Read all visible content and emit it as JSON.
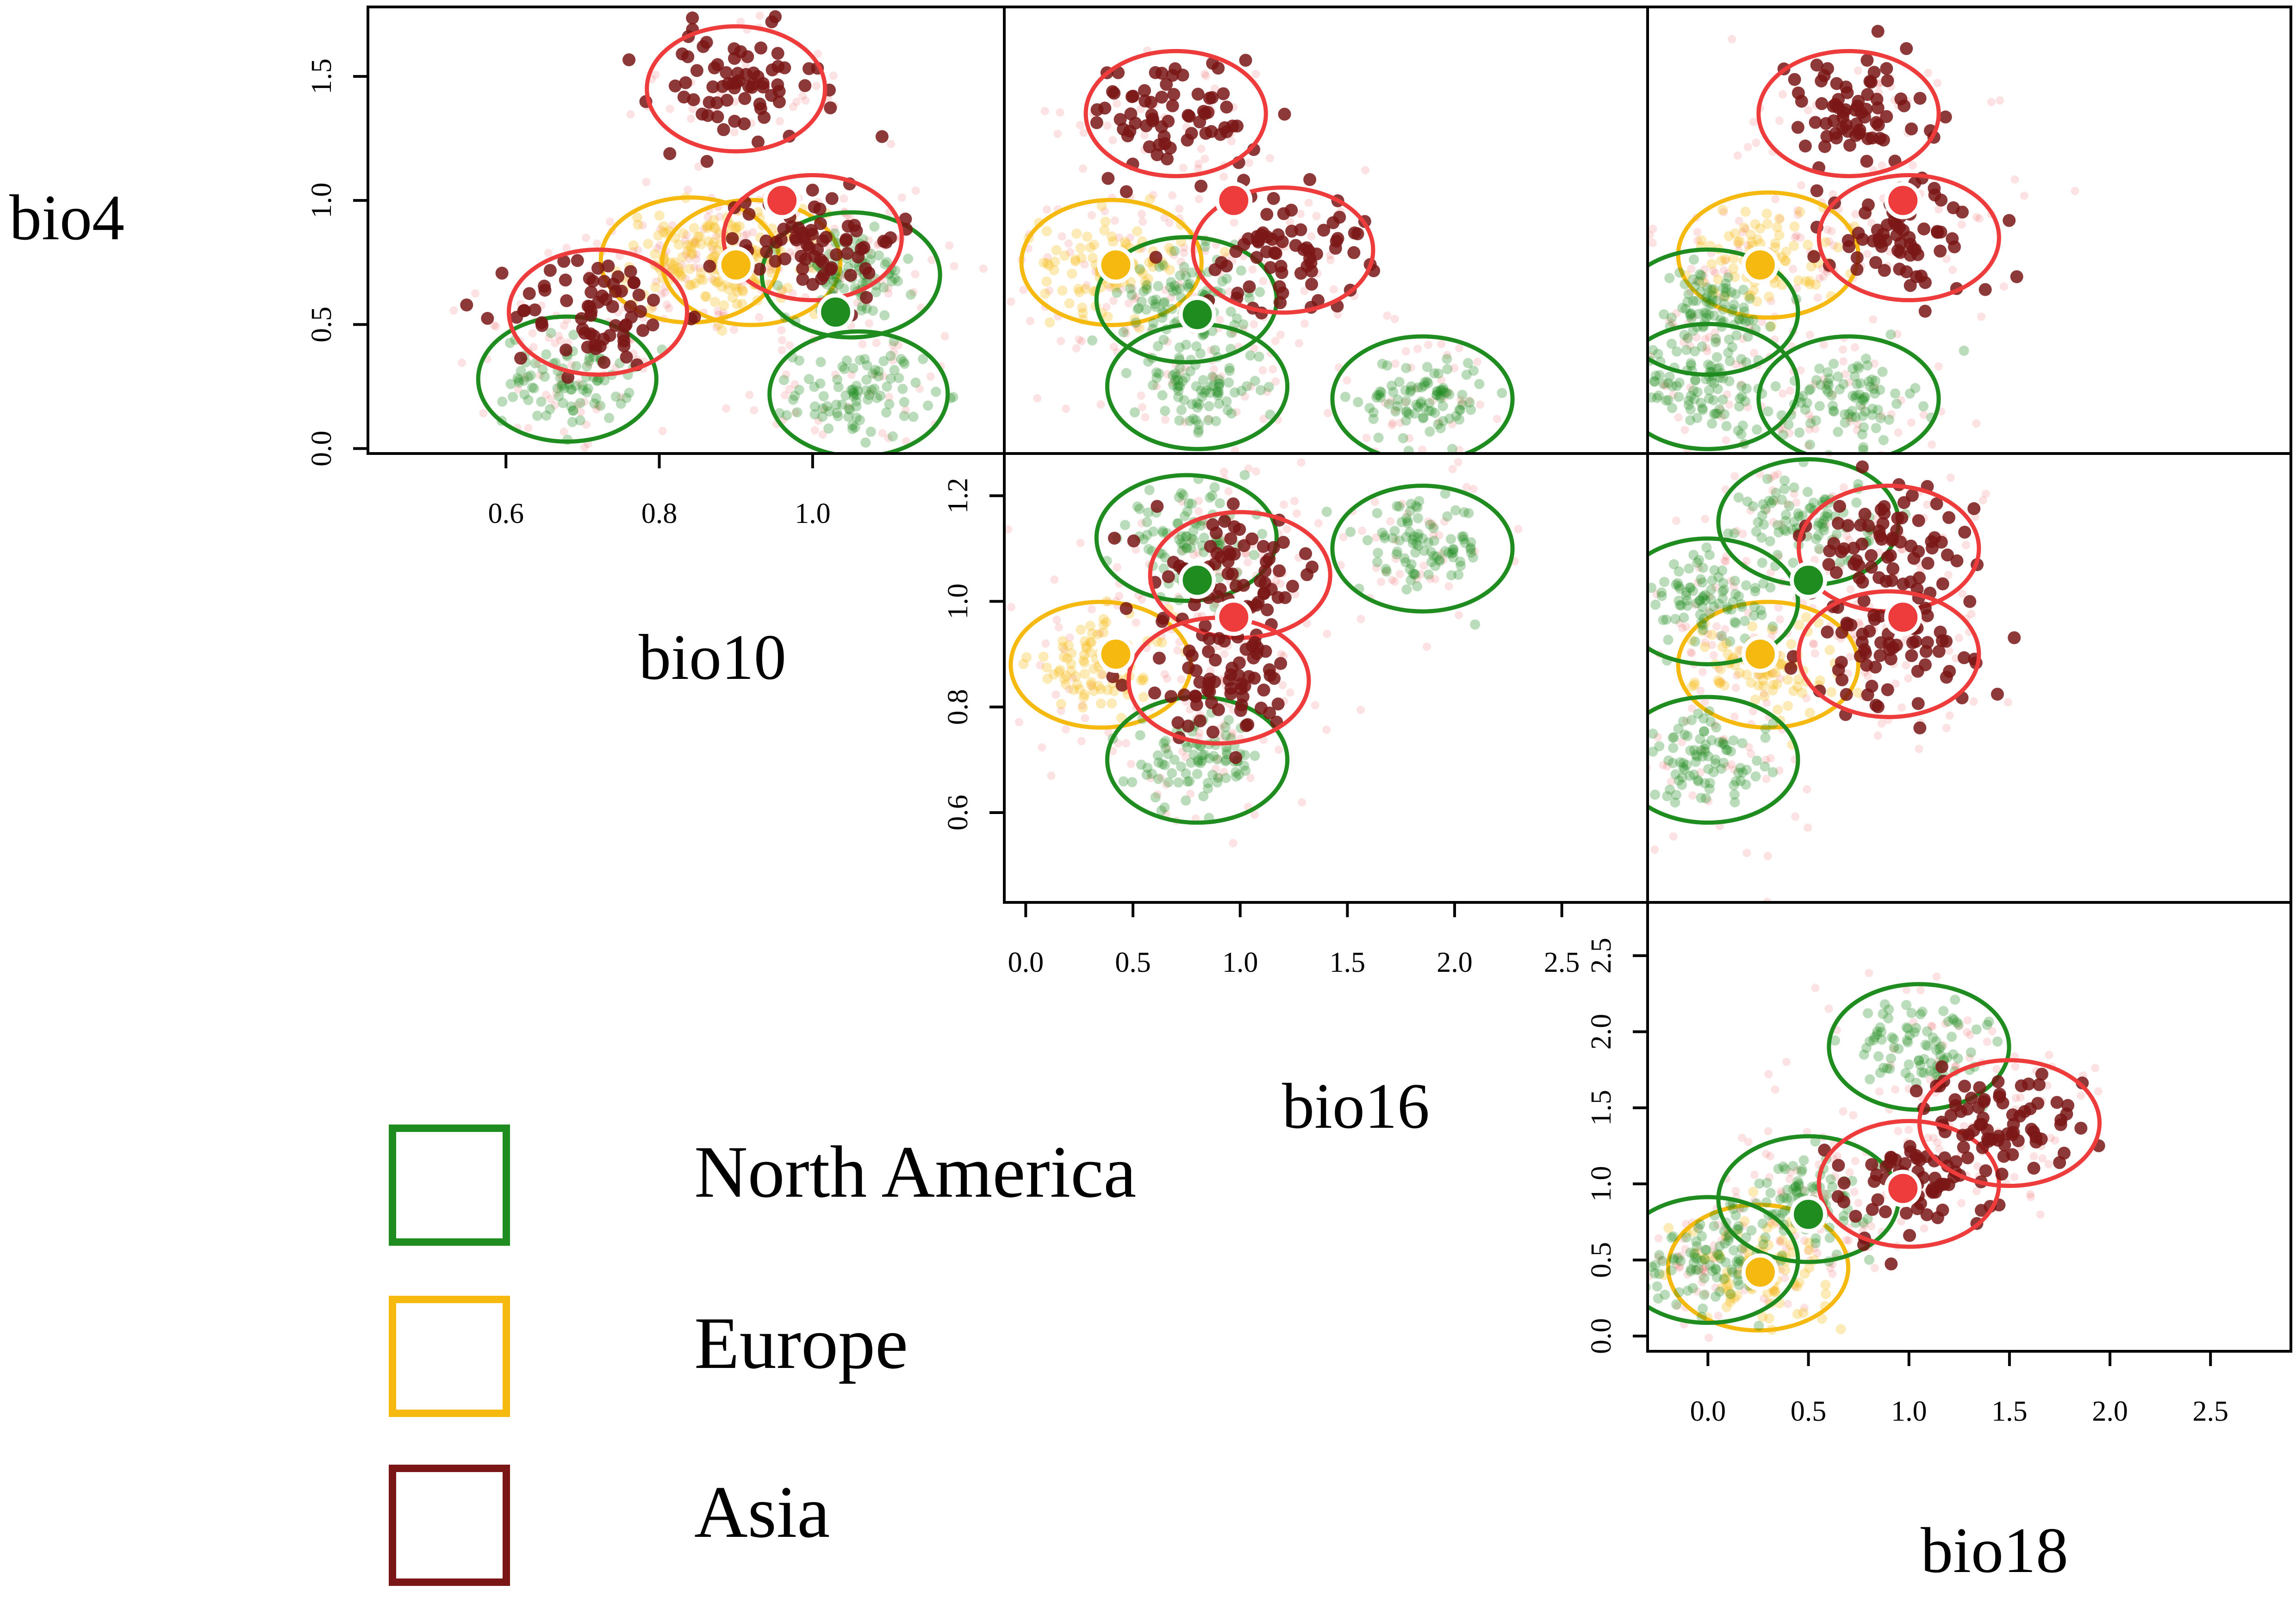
{
  "chart_data": {
    "type": "scatter",
    "title": "",
    "variables": [
      "bio4",
      "bio10",
      "bio16",
      "bio18"
    ],
    "grid": false,
    "legend_placement": "bottom-left",
    "legend": [
      {
        "name": "North America",
        "color": "#1e8c1e"
      },
      {
        "name": "Europe",
        "color": "#f5b90f"
      },
      {
        "name": "Asia",
        "color": "#7a1616"
      }
    ],
    "overlay_color": "#ee3b3b",
    "panels": [
      {
        "id": "bio10_vs_bio4",
        "x_variable": "bio10",
        "y_variable": "bio4",
        "xlim": [
          0.42,
          1.25
        ],
        "ylim": [
          -0.02,
          1.78
        ],
        "x_ticks": [
          "0.6",
          "0.8",
          "1.0"
        ],
        "y_ticks": [
          "0.0",
          "0.5",
          "1.0",
          "1.5"
        ],
        "x_tick_values": [
          0.6,
          0.8,
          1.0
        ],
        "y_tick_values": [
          0.0,
          0.5,
          1.0,
          1.5
        ],
        "clusters": [
          {
            "region": "North America",
            "points": [
              [
                0.68,
                0.28
              ],
              [
                1.06,
                0.22
              ],
              [
                1.05,
                0.7
              ]
            ]
          },
          {
            "region": "Europe",
            "points": [
              [
                0.84,
                0.76
              ],
              [
                0.92,
                0.75
              ]
            ]
          },
          {
            "region": "Asia",
            "points": [
              [
                0.9,
                1.45
              ],
              [
                1.0,
                0.85
              ],
              [
                0.72,
                0.55
              ]
            ]
          }
        ],
        "centroids": [
          {
            "region": "Europe",
            "x": 0.9,
            "y": 0.74
          },
          {
            "region": "Asia",
            "x": 0.96,
            "y": 1.0
          },
          {
            "region": "North America",
            "x": 1.03,
            "y": 0.55
          }
        ]
      },
      {
        "id": "bio16_vs_bio4",
        "x_variable": "bio16",
        "y_variable": "bio4",
        "xlim": [
          -0.1,
          2.9
        ],
        "ylim": [
          -0.02,
          1.78
        ],
        "x_ticks": [],
        "y_ticks": [],
        "x_tick_values": [],
        "y_tick_values": [],
        "clusters": [
          {
            "region": "North America",
            "points": [
              [
                0.8,
                0.25
              ],
              [
                1.85,
                0.2
              ],
              [
                0.75,
                0.6
              ]
            ]
          },
          {
            "region": "Europe",
            "points": [
              [
                0.4,
                0.75
              ]
            ]
          },
          {
            "region": "Asia",
            "points": [
              [
                0.7,
                1.35
              ],
              [
                1.2,
                0.8
              ]
            ]
          }
        ],
        "centroids": [
          {
            "region": "Europe",
            "x": 0.42,
            "y": 0.74
          },
          {
            "region": "Asia",
            "x": 0.97,
            "y": 1.0
          },
          {
            "region": "North America",
            "x": 0.8,
            "y": 0.54
          }
        ]
      },
      {
        "id": "bio18_vs_bio4",
        "x_variable": "bio18",
        "y_variable": "bio4",
        "xlim": [
          -0.3,
          2.9
        ],
        "ylim": [
          -0.02,
          1.78
        ],
        "x_ticks": [],
        "y_ticks": [],
        "x_tick_values": [],
        "y_tick_values": [],
        "clusters": [
          {
            "region": "North America",
            "points": [
              [
                0.0,
                0.55
              ],
              [
                0.0,
                0.25
              ],
              [
                0.7,
                0.2
              ]
            ]
          },
          {
            "region": "Europe",
            "points": [
              [
                0.3,
                0.78
              ]
            ]
          },
          {
            "region": "Asia",
            "points": [
              [
                0.7,
                1.35
              ],
              [
                1.0,
                0.85
              ]
            ]
          }
        ],
        "centroids": [
          {
            "region": "Europe",
            "x": 0.26,
            "y": 0.74
          },
          {
            "region": "Asia",
            "x": 0.97,
            "y": 1.0
          }
        ]
      },
      {
        "id": "bio16_vs_bio10",
        "x_variable": "bio16",
        "y_variable": "bio10",
        "xlim": [
          -0.1,
          2.9
        ],
        "ylim": [
          0.43,
          1.28
        ],
        "x_ticks": [
          "0.0",
          "0.5",
          "1.0",
          "1.5",
          "2.0",
          "2.5"
        ],
        "y_ticks": [
          "0.6",
          "0.8",
          "1.0",
          "1.2"
        ],
        "x_tick_values": [
          0.0,
          0.5,
          1.0,
          1.5,
          2.0,
          2.5
        ],
        "y_tick_values": [
          0.6,
          0.8,
          1.0,
          1.2
        ],
        "clusters": [
          {
            "region": "North America",
            "points": [
              [
                0.75,
                1.12
              ],
              [
                1.85,
                1.1
              ],
              [
                0.8,
                0.7
              ]
            ]
          },
          {
            "region": "Europe",
            "points": [
              [
                0.35,
                0.88
              ]
            ]
          },
          {
            "region": "Asia",
            "points": [
              [
                1.0,
                1.05
              ],
              [
                0.9,
                0.85
              ]
            ]
          }
        ],
        "centroids": [
          {
            "region": "Europe",
            "x": 0.42,
            "y": 0.9
          },
          {
            "region": "Asia",
            "x": 0.97,
            "y": 0.97
          },
          {
            "region": "North America",
            "x": 0.8,
            "y": 1.04
          }
        ]
      },
      {
        "id": "bio18_vs_bio10",
        "x_variable": "bio18",
        "y_variable": "bio10",
        "xlim": [
          -0.3,
          2.9
        ],
        "ylim": [
          0.43,
          1.28
        ],
        "x_ticks": [],
        "y_ticks": [],
        "x_tick_values": [],
        "y_tick_values": [],
        "clusters": [
          {
            "region": "North America",
            "points": [
              [
                0.0,
                1.0
              ],
              [
                0.5,
                1.15
              ],
              [
                0.0,
                0.7
              ]
            ]
          },
          {
            "region": "Europe",
            "points": [
              [
                0.3,
                0.88
              ]
            ]
          },
          {
            "region": "Asia",
            "points": [
              [
                0.9,
                1.1
              ],
              [
                0.9,
                0.9
              ]
            ]
          }
        ],
        "centroids": [
          {
            "region": "Europe",
            "x": 0.26,
            "y": 0.9
          },
          {
            "region": "Asia",
            "x": 0.97,
            "y": 0.97
          },
          {
            "region": "North America",
            "x": 0.5,
            "y": 1.04
          }
        ]
      },
      {
        "id": "bio18_vs_bio16",
        "x_variable": "bio18",
        "y_variable": "bio16",
        "xlim": [
          -0.3,
          2.9
        ],
        "ylim": [
          -0.1,
          2.85
        ],
        "x_ticks": [
          "0.0",
          "0.5",
          "1.0",
          "1.5",
          "2.0",
          "2.5"
        ],
        "y_ticks": [
          "0.0",
          "0.5",
          "1.0",
          "1.5",
          "2.0",
          "2.5"
        ],
        "x_tick_values": [
          0.0,
          0.5,
          1.0,
          1.5,
          2.0,
          2.5
        ],
        "y_tick_values": [
          0.0,
          0.5,
          1.0,
          1.5,
          2.0,
          2.5
        ],
        "clusters": [
          {
            "region": "North America",
            "points": [
              [
                0.0,
                0.5
              ],
              [
                0.5,
                0.9
              ],
              [
                1.05,
                1.9
              ]
            ]
          },
          {
            "region": "Europe",
            "points": [
              [
                0.25,
                0.45
              ]
            ]
          },
          {
            "region": "Asia",
            "points": [
              [
                1.0,
                1.0
              ],
              [
                1.5,
                1.4
              ]
            ]
          }
        ],
        "centroids": [
          {
            "region": "Europe",
            "x": 0.26,
            "y": 0.42
          },
          {
            "region": "North America",
            "x": 0.5,
            "y": 0.8
          },
          {
            "region": "Asia",
            "x": 0.97,
            "y": 0.97
          }
        ]
      }
    ]
  }
}
